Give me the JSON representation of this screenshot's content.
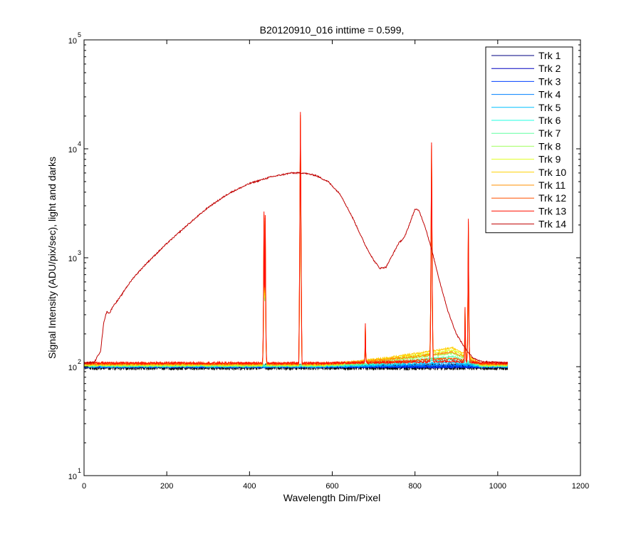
{
  "chart_data": {
    "type": "line",
    "title": "B20120910_016 inttime = 0.599,",
    "xlabel": "Wavelength Dim/Pixel",
    "ylabel": "Signal Intensity (ADU/pix/sec), light and darks",
    "xlim": [
      0,
      1200
    ],
    "ylim": [
      10,
      100000
    ],
    "yscale": "log",
    "x_ticks": [
      "0",
      "200",
      "400",
      "600",
      "800",
      "1000",
      "1200"
    ],
    "y_ticks": [
      {
        "base": "10",
        "exp": "1"
      },
      {
        "base": "10",
        "exp": "2"
      },
      {
        "base": "10",
        "exp": "3"
      },
      {
        "base": "10",
        "exp": "4"
      },
      {
        "base": "10",
        "exp": "5"
      }
    ],
    "grid": false,
    "legend_position": "top-right",
    "pixel_range": [
      0,
      1024
    ],
    "series": [
      {
        "name": "Trk 1",
        "color": "#000080",
        "baseline": 100,
        "max_hump": 0
      },
      {
        "name": "Trk 2",
        "color": "#0000c0",
        "baseline": 100,
        "max_hump": 0
      },
      {
        "name": "Trk 3",
        "color": "#0040ff",
        "baseline": 100,
        "max_hump": 0
      },
      {
        "name": "Trk 4",
        "color": "#0080ff",
        "baseline": 101,
        "max_hump": 3
      },
      {
        "name": "Trk 5",
        "color": "#00c0ff",
        "baseline": 101,
        "max_hump": 8
      },
      {
        "name": "Trk 6",
        "color": "#20ffe0",
        "baseline": 102,
        "max_hump": 14
      },
      {
        "name": "Trk 7",
        "color": "#60ffa0",
        "baseline": 102,
        "max_hump": 22
      },
      {
        "name": "Trk 8",
        "color": "#a0ff60",
        "baseline": 103,
        "max_hump": 30
      },
      {
        "name": "Trk 9",
        "color": "#e0ff20",
        "baseline": 104,
        "max_hump": 38
      },
      {
        "name": "Trk 10",
        "color": "#ffd000",
        "baseline": 105,
        "max_hump": 44
      },
      {
        "name": "Trk 11",
        "color": "#ff9000",
        "baseline": 106,
        "max_hump": 30
      },
      {
        "name": "Trk 12",
        "color": "#ff5000",
        "baseline": 107,
        "max_hump": 12
      },
      {
        "name": "Trk 13",
        "color": "#ff1000",
        "baseline": 108,
        "max_hump": 4
      },
      {
        "name": "Trk 14",
        "color": "#c00000",
        "baseline": 108,
        "max_hump": 0
      }
    ],
    "trk14_curve": [
      [
        0,
        108
      ],
      [
        25,
        110
      ],
      [
        40,
        140
      ],
      [
        48,
        260
      ],
      [
        55,
        320
      ],
      [
        62,
        310
      ],
      [
        70,
        360
      ],
      [
        80,
        400
      ],
      [
        90,
        450
      ],
      [
        100,
        520
      ],
      [
        120,
        660
      ],
      [
        150,
        880
      ],
      [
        200,
        1350
      ],
      [
        250,
        2000
      ],
      [
        300,
        2900
      ],
      [
        350,
        3900
      ],
      [
        400,
        4800
      ],
      [
        450,
        5500
      ],
      [
        500,
        6000
      ],
      [
        530,
        6000
      ],
      [
        560,
        5700
      ],
      [
        590,
        5000
      ],
      [
        620,
        3800
      ],
      [
        650,
        2300
      ],
      [
        680,
        1300
      ],
      [
        700,
        950
      ],
      [
        715,
        800
      ],
      [
        730,
        820
      ],
      [
        745,
        1050
      ],
      [
        760,
        1350
      ],
      [
        775,
        1550
      ],
      [
        790,
        2200
      ],
      [
        800,
        2800
      ],
      [
        810,
        2700
      ],
      [
        825,
        1900
      ],
      [
        840,
        1200
      ],
      [
        860,
        600
      ],
      [
        880,
        320
      ],
      [
        900,
        200
      ],
      [
        920,
        150
      ],
      [
        940,
        120
      ],
      [
        960,
        112
      ],
      [
        1024,
        108
      ]
    ],
    "spectral_lines": [
      {
        "x": 435,
        "peak": 2700
      },
      {
        "x": 438,
        "peak": 2500
      },
      {
        "x": 523,
        "peak": 23000
      },
      {
        "x": 680,
        "peak": 150
      },
      {
        "x": 840,
        "peak": 12000
      },
      {
        "x": 921,
        "peak": 260
      },
      {
        "x": 929,
        "peak": 2300
      }
    ]
  }
}
